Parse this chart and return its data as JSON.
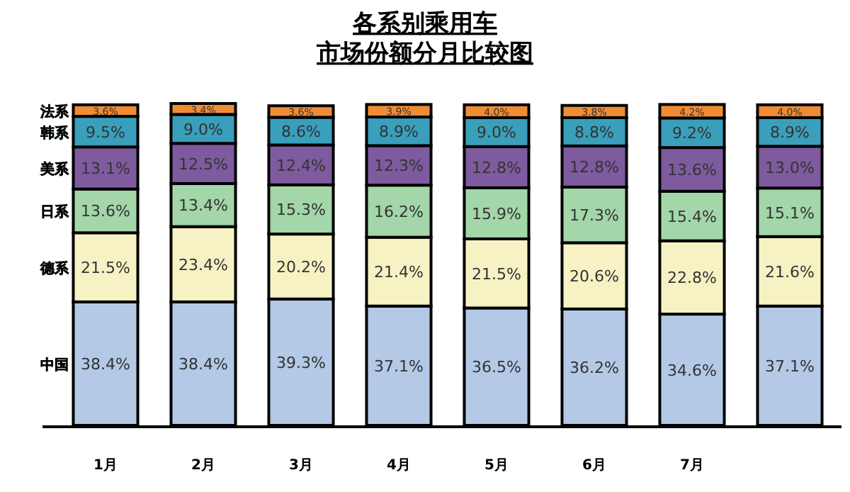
{
  "chart_data": {
    "type": "bar",
    "stacked": true,
    "title": "各系别乘用车",
    "subtitle": "市场份额分月比较图",
    "categories": [
      "1月",
      "2月",
      "3月",
      "4月",
      "5月",
      "6月",
      "7月",
      null
    ],
    "legend": "left",
    "series": [
      {
        "name": "中国",
        "color": "#b3c9e6",
        "values": [
          38.4,
          38.4,
          39.3,
          37.1,
          36.5,
          36.2,
          34.6,
          37.1
        ],
        "value_labels": [
          "38.4%",
          "38.4%",
          "39.3%",
          "37.1%",
          "36.5%",
          "36.2%",
          "34.6%",
          "37.1%"
        ]
      },
      {
        "name": "德系",
        "color": "#f6f2c4",
        "values": [
          21.5,
          23.4,
          20.2,
          21.4,
          21.5,
          20.6,
          22.8,
          21.6
        ],
        "value_labels": [
          "21.5%",
          "23.4%",
          "20.2%",
          "21.4%",
          "21.5%",
          "20.6%",
          "22.8%",
          "21.6%"
        ]
      },
      {
        "name": "日系",
        "color": "#a3d6a8",
        "values": [
          13.6,
          13.4,
          15.3,
          16.2,
          15.9,
          17.3,
          15.4,
          15.1
        ],
        "value_labels": [
          "13.6%",
          "13.4%",
          "15.3%",
          "16.2%",
          "15.9%",
          "17.3%",
          "15.4%",
          "15.1%"
        ]
      },
      {
        "name": "美系",
        "color": "#7e5a9e",
        "values": [
          13.1,
          12.5,
          12.4,
          12.3,
          12.8,
          12.8,
          13.6,
          13.0
        ],
        "value_labels": [
          "13.1%",
          "12.5%",
          "12.4%",
          "12.3%",
          "12.8%",
          "12.8%",
          "13.6%",
          "13.0%"
        ]
      },
      {
        "name": "韩系",
        "color": "#3a9fbb",
        "values": [
          9.5,
          9.0,
          8.6,
          8.9,
          9.0,
          8.8,
          9.2,
          8.9
        ],
        "value_labels": [
          "9.5%",
          "9.0%",
          "8.6%",
          "8.9%",
          "9.0%",
          "8.8%",
          "9.2%",
          "8.9%"
        ]
      },
      {
        "name": "法系",
        "color": "#f08c34",
        "values": [
          3.6,
          3.4,
          3.6,
          3.9,
          4.0,
          3.8,
          4.2,
          4.0
        ],
        "value_labels": [
          "3.6%",
          "3.4%",
          "3.6%",
          "3.9%",
          "4.0%",
          "3.8%",
          "4.2%",
          "4.0%"
        ]
      }
    ]
  }
}
